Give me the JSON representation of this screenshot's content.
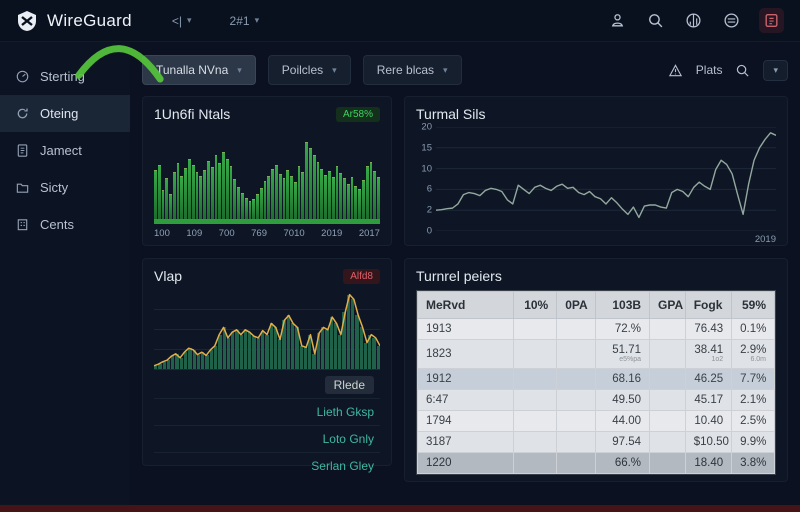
{
  "topbar": {
    "brand": "WireGuard",
    "dropdown1": "<|",
    "dropdown2": "2#1",
    "icon_names": [
      "share-icon",
      "search-icon",
      "stats-icon",
      "settings-icon",
      "alert-icon"
    ]
  },
  "sidebar": {
    "items": [
      {
        "label": "Sterting",
        "icon": "gauge-icon",
        "active": false
      },
      {
        "label": "Oteing",
        "icon": "refresh-icon",
        "active": true
      },
      {
        "label": "Jamect",
        "icon": "document-icon",
        "active": false
      },
      {
        "label": "Sicty",
        "icon": "folder-icon",
        "active": false
      },
      {
        "label": "Cents",
        "icon": "building-icon",
        "active": false
      }
    ]
  },
  "filterbar": {
    "dropdowns": [
      {
        "label": "Tunalla NVna",
        "selected": true
      },
      {
        "label": "Poilcles",
        "selected": false
      },
      {
        "label": "Rere blcas",
        "selected": false
      }
    ],
    "alerts_label": "Plats"
  },
  "panel_bars": {
    "title": "1Un6fi Ntals",
    "badge": "Ar58%"
  },
  "panel_line": {
    "title": "Turmal Sils",
    "x_end_label": "2019"
  },
  "panel_area": {
    "title": "Vlap",
    "badge": "Alfd8",
    "chart_label": "Rlede",
    "legend": [
      "Lieth Gksp",
      "Loto Gnly",
      "Serlan Gley"
    ]
  },
  "panel_table": {
    "title": "Turnrel peiers",
    "headers": [
      "MeRvd",
      "10%",
      "0PA",
      "103B",
      "GPA",
      "Fogk",
      "59%"
    ],
    "rows": [
      {
        "cells": [
          "1913",
          "",
          "",
          "72.%",
          "",
          "76.43",
          "0.1%"
        ]
      },
      {
        "cells": [
          "1823",
          "",
          "",
          "51.71",
          "",
          "38.41",
          "2.9%"
        ],
        "subs": [
          "",
          "",
          "",
          "e5%pa",
          "",
          "1o2",
          "6.0m"
        ]
      },
      {
        "cells": [
          "1912",
          "",
          "",
          "68.16",
          "",
          "46.25",
          "7.7%"
        ],
        "highlight": "blue"
      },
      {
        "cells": [
          "6:47",
          "",
          "",
          "49.50",
          "",
          "45.17",
          "2.1%"
        ]
      },
      {
        "cells": [
          "1794",
          "",
          "",
          "44.00",
          "",
          "10.40",
          "2.5%"
        ]
      },
      {
        "cells": [
          "3187",
          "",
          "",
          "97.54",
          "",
          "$10.50",
          "9.9%"
        ]
      },
      {
        "cells": [
          "1220",
          "",
          "",
          "66.%",
          "",
          "18.40",
          "3.8%"
        ],
        "highlight": "dark"
      }
    ]
  },
  "chart_data": [
    {
      "type": "bar",
      "title": "1Un6fi Ntals",
      "x_labels": [
        "100",
        "109",
        "700",
        "769",
        "7010",
        "2019",
        "2017"
      ],
      "values": [
        52,
        58,
        30,
        44,
        26,
        50,
        60,
        46,
        54,
        64,
        58,
        50,
        46,
        52,
        62,
        55,
        68,
        60,
        72,
        64,
        56,
        42,
        34,
        27,
        22,
        18,
        21,
        26,
        33,
        40,
        46,
        53,
        58,
        48,
        43,
        52,
        46,
        39,
        57,
        50,
        83,
        76,
        68,
        61,
        53,
        47,
        51,
        45,
        57,
        49,
        43,
        37,
        45,
        35,
        31,
        41,
        56,
        61,
        51,
        45
      ],
      "ylim": [
        0,
        100
      ],
      "bar_color": "#2f9c3e",
      "arc_color": "#55c53b",
      "legend_position": "none",
      "grid": false
    },
    {
      "type": "line",
      "title": "Turmal Sils",
      "y_ticks": [
        20,
        15,
        10,
        6,
        2,
        0
      ],
      "x_end_label": "2019",
      "values": [
        2,
        2.1,
        2.3,
        2.4,
        3.2,
        5,
        5.4,
        5.2,
        4.8,
        5.8,
        6.2,
        6,
        5.6,
        4,
        3.2,
        6.8,
        6,
        5.2,
        6.4,
        6.8,
        6.2,
        5.8,
        6.6,
        7,
        6.2,
        6.4,
        5.4,
        5,
        5.6,
        4.6,
        4.2,
        3.2,
        4.4,
        3.4,
        2.2,
        1.6,
        2.6,
        1.3,
        2.8,
        3,
        3,
        2.6,
        2.4,
        5.4,
        6,
        5.6,
        4.6,
        6.4,
        7.4,
        6.6,
        6,
        9.8,
        12,
        11,
        9,
        5,
        1.6,
        7,
        12,
        15,
        17,
        18.6,
        18
      ],
      "ylim": [
        0,
        20
      ],
      "line_color": "#93a89e",
      "grid": true,
      "legend_position": "none"
    },
    {
      "type": "area",
      "title": "Vlap",
      "values": [
        4,
        6,
        9,
        11,
        16,
        19,
        14,
        21,
        26,
        24,
        18,
        21,
        17,
        24,
        29,
        43,
        52,
        39,
        46,
        49,
        43,
        49,
        46,
        41,
        39,
        48,
        43,
        57,
        52,
        37,
        61,
        67,
        57,
        52,
        29,
        27,
        43,
        19,
        45,
        52,
        49,
        65,
        57,
        43,
        71,
        93,
        87,
        67,
        52,
        33,
        43,
        39,
        29
      ],
      "ylim": [
        0,
        100
      ],
      "fill_color": "#20614a",
      "line_color": "#e2ae4a",
      "grid": true,
      "legend_position": "below-right"
    }
  ]
}
